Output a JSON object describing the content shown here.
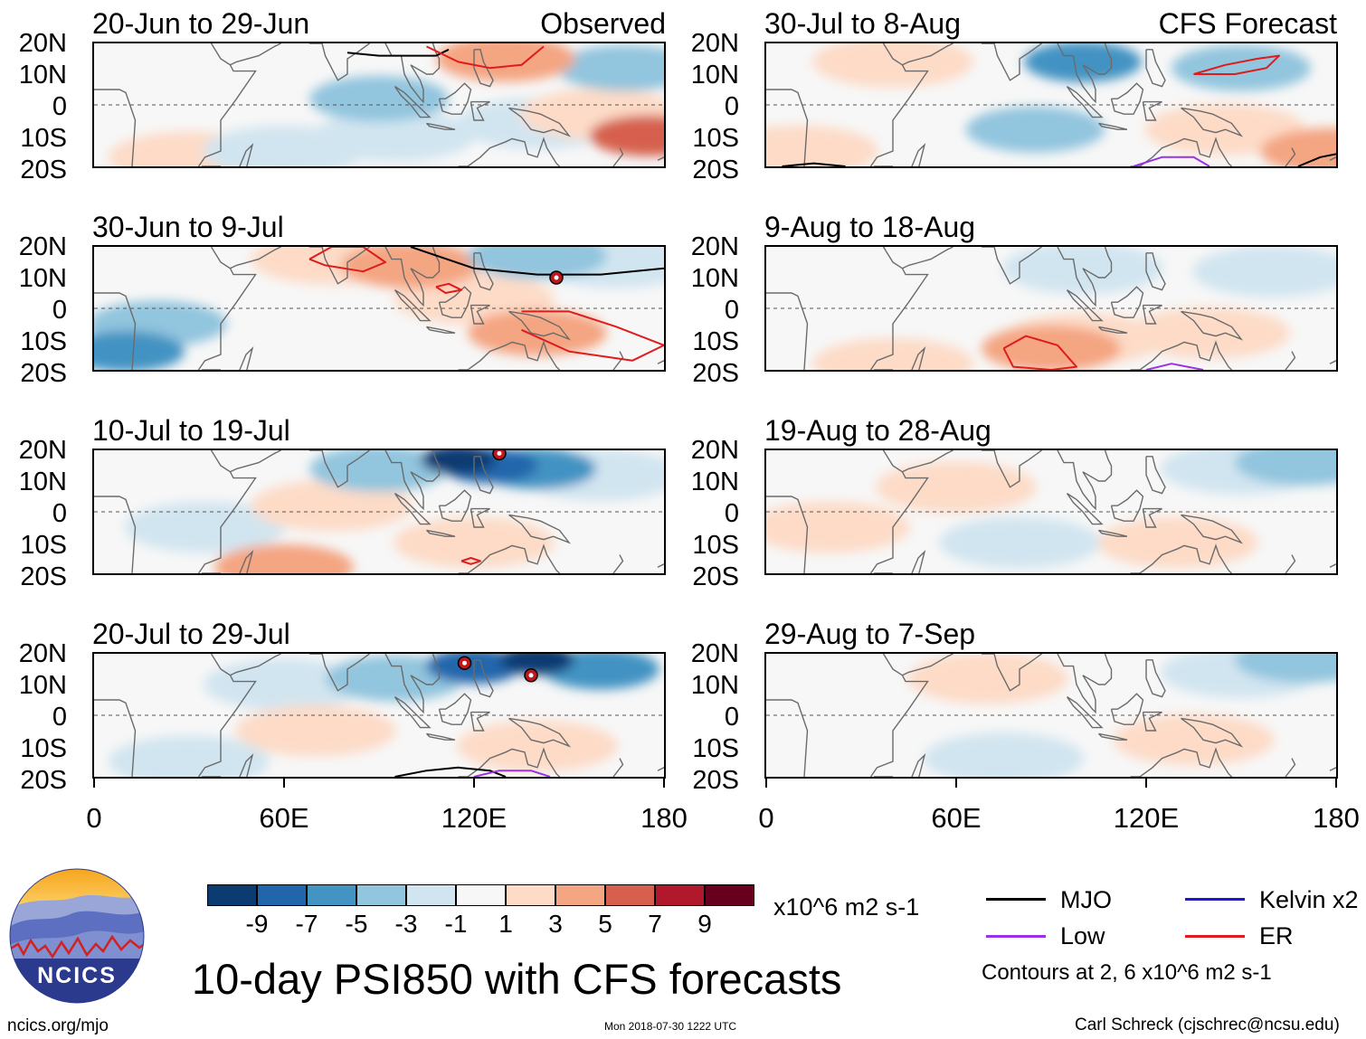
{
  "colors": {
    "bneg9": "#0c3b72",
    "bneg7": "#2166ac",
    "bneg5": "#4393c3",
    "bneg3": "#92c5de",
    "bneg1": "#d1e5f0",
    "neutral": "#f7f7f7",
    "rpos1": "#fddbc7",
    "rpos3": "#f4a582",
    "rpos5": "#d6604d",
    "rpos7": "#b2182b",
    "rpos9": "#67001f",
    "mjo": "#000000",
    "low": "#9b30e6",
    "kelvin": "#1a1ad6",
    "er": "#e01b1b",
    "coast": "#6b6b6b"
  },
  "panel_labels": {
    "observed": "Observed",
    "forecast": "CFS Forecast"
  },
  "chart_data": [
    {
      "type": "heatmap",
      "column": "left",
      "title": "20-Jun to 29-Jun",
      "lat_labels": [
        "20N",
        "10N",
        "0",
        "10S",
        "20S"
      ],
      "lon_range": [
        0,
        180
      ],
      "lat_range": [
        -20,
        20
      ],
      "anomalies": [
        {
          "lon": 168,
          "lat": 12,
          "value": -3
        },
        {
          "lon": 90,
          "lat": 2,
          "value": -3
        },
        {
          "lon": 140,
          "lat": -6,
          "value": -1
        },
        {
          "lon": 175,
          "lat": -10,
          "value": 5
        },
        {
          "lon": 130,
          "lat": 15,
          "value": 3
        },
        {
          "lon": 160,
          "lat": -3,
          "value": 1
        },
        {
          "lon": 30,
          "lat": -17,
          "value": 1
        },
        {
          "lon": 95,
          "lat": -10,
          "value": -1
        },
        {
          "lon": 60,
          "lat": -15,
          "value": -1
        }
      ],
      "contours": [
        {
          "kind": "MJO",
          "lons": [
            80,
            90,
            100,
            108,
            112
          ],
          "lats": [
            17,
            16,
            16,
            16,
            18
          ]
        },
        {
          "kind": "ER",
          "lons": [
            105,
            115,
            125,
            135,
            142
          ],
          "lats": [
            19,
            14,
            12,
            13,
            19
          ]
        }
      ]
    },
    {
      "type": "heatmap",
      "column": "left",
      "title": "30-Jun to 9-Jul",
      "lat_labels": [
        "20N",
        "10N",
        "0",
        "10S",
        "20S"
      ],
      "lon_range": [
        0,
        180
      ],
      "lat_range": [
        -20,
        20
      ],
      "anomalies": [
        {
          "lon": 10,
          "lat": -14,
          "value": -5
        },
        {
          "lon": 20,
          "lat": -5,
          "value": -3
        },
        {
          "lon": 140,
          "lat": -8,
          "value": 3
        },
        {
          "lon": 100,
          "lat": 14,
          "value": 3
        },
        {
          "lon": 140,
          "lat": 17,
          "value": -3
        },
        {
          "lon": 165,
          "lat": 15,
          "value": -1
        },
        {
          "lon": 75,
          "lat": 16,
          "value": 1
        },
        {
          "lon": 120,
          "lat": 3,
          "value": 1
        }
      ],
      "contours": [
        {
          "kind": "ER",
          "lons": [
            68,
            75,
            85,
            92,
            85,
            73,
            68
          ],
          "lats": [
            16,
            20,
            20,
            15,
            12,
            14,
            16
          ]
        },
        {
          "kind": "ER",
          "lons": [
            108,
            112,
            116,
            111,
            108
          ],
          "lats": [
            7,
            8,
            6,
            5,
            7
          ]
        },
        {
          "kind": "ER",
          "lons": [
            135,
            150,
            165,
            180,
            170,
            150,
            135
          ],
          "lats": [
            -1,
            -1,
            -6,
            -12,
            -17,
            -14,
            -7
          ]
        },
        {
          "kind": "MJO",
          "lons": [
            100,
            120,
            140,
            160,
            180
          ],
          "lats": [
            20,
            13,
            11,
            11,
            13
          ]
        }
      ],
      "storms": [
        {
          "lon": 146,
          "lat": 10
        }
      ]
    },
    {
      "type": "heatmap",
      "column": "left",
      "title": "10-Jul to 19-Jul",
      "lat_labels": [
        "20N",
        "10N",
        "0",
        "10S",
        "20S"
      ],
      "lon_range": [
        0,
        180
      ],
      "lat_range": [
        -20,
        20
      ],
      "anomalies": [
        {
          "lon": 115,
          "lat": 17,
          "value": -9
        },
        {
          "lon": 125,
          "lat": 15,
          "value": -7
        },
        {
          "lon": 140,
          "lat": 14,
          "value": -5
        },
        {
          "lon": 90,
          "lat": 14,
          "value": -3
        },
        {
          "lon": 160,
          "lat": 12,
          "value": -1
        },
        {
          "lon": 35,
          "lat": -5,
          "value": -1
        },
        {
          "lon": 75,
          "lat": 2,
          "value": 1
        },
        {
          "lon": 120,
          "lat": -10,
          "value": 1
        },
        {
          "lon": 60,
          "lat": -18,
          "value": 3
        }
      ],
      "contours": [
        {
          "kind": "ER",
          "lons": [
            116,
            119,
            122,
            119,
            116
          ],
          "lats": [
            -16,
            -15,
            -16,
            -17,
            -16
          ]
        }
      ],
      "storms": [
        {
          "lon": 128,
          "lat": 19
        }
      ]
    },
    {
      "type": "heatmap",
      "column": "left",
      "title": "20-Jul to 29-Jul",
      "lat_labels": [
        "20N",
        "10N",
        "0",
        "10S",
        "20S"
      ],
      "lon_range": [
        0,
        180
      ],
      "lat_range": [
        -20,
        20
      ],
      "anomalies": [
        {
          "lon": 140,
          "lat": 18,
          "value": -9
        },
        {
          "lon": 120,
          "lat": 16,
          "value": -7
        },
        {
          "lon": 160,
          "lat": 15,
          "value": -5
        },
        {
          "lon": 95,
          "lat": 12,
          "value": -3
        },
        {
          "lon": 60,
          "lat": 10,
          "value": -1
        },
        {
          "lon": 70,
          "lat": -5,
          "value": 1
        },
        {
          "lon": 140,
          "lat": -10,
          "value": 1
        },
        {
          "lon": 30,
          "lat": -15,
          "value": -1
        }
      ],
      "contours": [
        {
          "kind": "MJO",
          "lons": [
            95,
            105,
            115,
            125,
            130
          ],
          "lats": [
            -20,
            -18,
            -17,
            -18,
            -20
          ]
        },
        {
          "kind": "Low",
          "lons": [
            120,
            128,
            138,
            144
          ],
          "lats": [
            -20,
            -18,
            -18,
            -20
          ]
        }
      ],
      "storms": [
        {
          "lon": 117,
          "lat": 17
        },
        {
          "lon": 138,
          "lat": 13
        }
      ]
    },
    {
      "type": "heatmap",
      "column": "right",
      "title": "30-Jul to 8-Aug",
      "lat_labels": [
        "20N",
        "10N",
        "0",
        "10S",
        "20S"
      ],
      "lon_range": [
        0,
        180
      ],
      "lat_range": [
        -20,
        20
      ],
      "anomalies": [
        {
          "lon": 100,
          "lat": 14,
          "value": -5
        },
        {
          "lon": 85,
          "lat": -8,
          "value": -3
        },
        {
          "lon": 150,
          "lat": 12,
          "value": -3
        },
        {
          "lon": 40,
          "lat": 14,
          "value": 1
        },
        {
          "lon": 145,
          "lat": -8,
          "value": 1
        },
        {
          "lon": 178,
          "lat": -15,
          "value": 3
        },
        {
          "lon": 10,
          "lat": -15,
          "value": 1
        }
      ],
      "contours": [
        {
          "kind": "ER",
          "lons": [
            135,
            145,
            155,
            162,
            158,
            148,
            135
          ],
          "lats": [
            10,
            13,
            15,
            16,
            12,
            10,
            10
          ]
        },
        {
          "kind": "Low",
          "lons": [
            116,
            125,
            135,
            140
          ],
          "lats": [
            -20,
            -17,
            -17,
            -20
          ]
        },
        {
          "kind": "MJO",
          "lons": [
            5,
            15,
            25
          ],
          "lats": [
            -20,
            -19,
            -20
          ]
        },
        {
          "kind": "MJO",
          "lons": [
            168,
            175,
            180
          ],
          "lats": [
            -20,
            -17,
            -16
          ]
        }
      ]
    },
    {
      "type": "heatmap",
      "column": "right",
      "title": "9-Aug to 18-Aug",
      "lat_labels": [
        "20N",
        "10N",
        "0",
        "10S",
        "20S"
      ],
      "lon_range": [
        0,
        180
      ],
      "lat_range": [
        -20,
        20
      ],
      "anomalies": [
        {
          "lon": 90,
          "lat": -13,
          "value": 3
        },
        {
          "lon": 100,
          "lat": -10,
          "value": 1
        },
        {
          "lon": 140,
          "lat": -8,
          "value": 1
        },
        {
          "lon": 100,
          "lat": 13,
          "value": -1
        },
        {
          "lon": 160,
          "lat": 12,
          "value": -1
        },
        {
          "lon": 40,
          "lat": -18,
          "value": 1
        }
      ],
      "contours": [
        {
          "kind": "ER",
          "lons": [
            75,
            82,
            92,
            98,
            90,
            78,
            75
          ],
          "lats": [
            -13,
            -9,
            -12,
            -19,
            -20,
            -19,
            -13
          ]
        },
        {
          "kind": "Low",
          "lons": [
            120,
            128,
            138
          ],
          "lats": [
            -20,
            -18,
            -20
          ]
        }
      ]
    },
    {
      "type": "heatmap",
      "column": "right",
      "title": "19-Aug to 28-Aug",
      "lat_labels": [
        "20N",
        "10N",
        "0",
        "10S",
        "20S"
      ],
      "lon_range": [
        0,
        180
      ],
      "lat_range": [
        -20,
        20
      ],
      "anomalies": [
        {
          "lon": 20,
          "lat": -5,
          "value": 1
        },
        {
          "lon": 60,
          "lat": 8,
          "value": 1
        },
        {
          "lon": 130,
          "lat": -10,
          "value": 1
        },
        {
          "lon": 150,
          "lat": 14,
          "value": -1
        },
        {
          "lon": 170,
          "lat": 16,
          "value": -3
        },
        {
          "lon": 80,
          "lat": -10,
          "value": -1
        }
      ],
      "contours": []
    },
    {
      "type": "heatmap",
      "column": "right",
      "title": "29-Aug to 7-Sep",
      "lat_labels": [
        "20N",
        "10N",
        "0",
        "10S",
        "20S"
      ],
      "lon_range": [
        0,
        180
      ],
      "lat_range": [
        -20,
        20
      ],
      "anomalies": [
        {
          "lon": 70,
          "lat": 12,
          "value": 1
        },
        {
          "lon": 150,
          "lat": 14,
          "value": -1
        },
        {
          "lon": 170,
          "lat": 18,
          "value": -3
        },
        {
          "lon": 135,
          "lat": -8,
          "value": 1
        },
        {
          "lon": 75,
          "lat": -14,
          "value": -1
        }
      ],
      "contours": []
    }
  ],
  "x_axis": {
    "labels": [
      "0",
      "60E",
      "120E",
      "180"
    ]
  },
  "colorbar": {
    "labels": [
      "-9",
      "-7",
      "-5",
      "-3",
      "-1",
      "1",
      "3",
      "5",
      "7",
      "9"
    ],
    "units": "x10^6 m2 s-1"
  },
  "legend": {
    "mjo": "MJO",
    "kelvin": "Kelvin x2",
    "low": "Low",
    "er": "ER",
    "contours_note": "Contours at 2, 6 x10^6 m2 s-1"
  },
  "footer": {
    "main_title": "10-day PSI850 with CFS forecasts",
    "logo_text": "NCICS",
    "website": "ncics.org/mjo",
    "timestamp": "Mon 2018-07-30 1222 UTC",
    "author": "Carl Schreck (cjschrec@ncsu.edu)"
  }
}
